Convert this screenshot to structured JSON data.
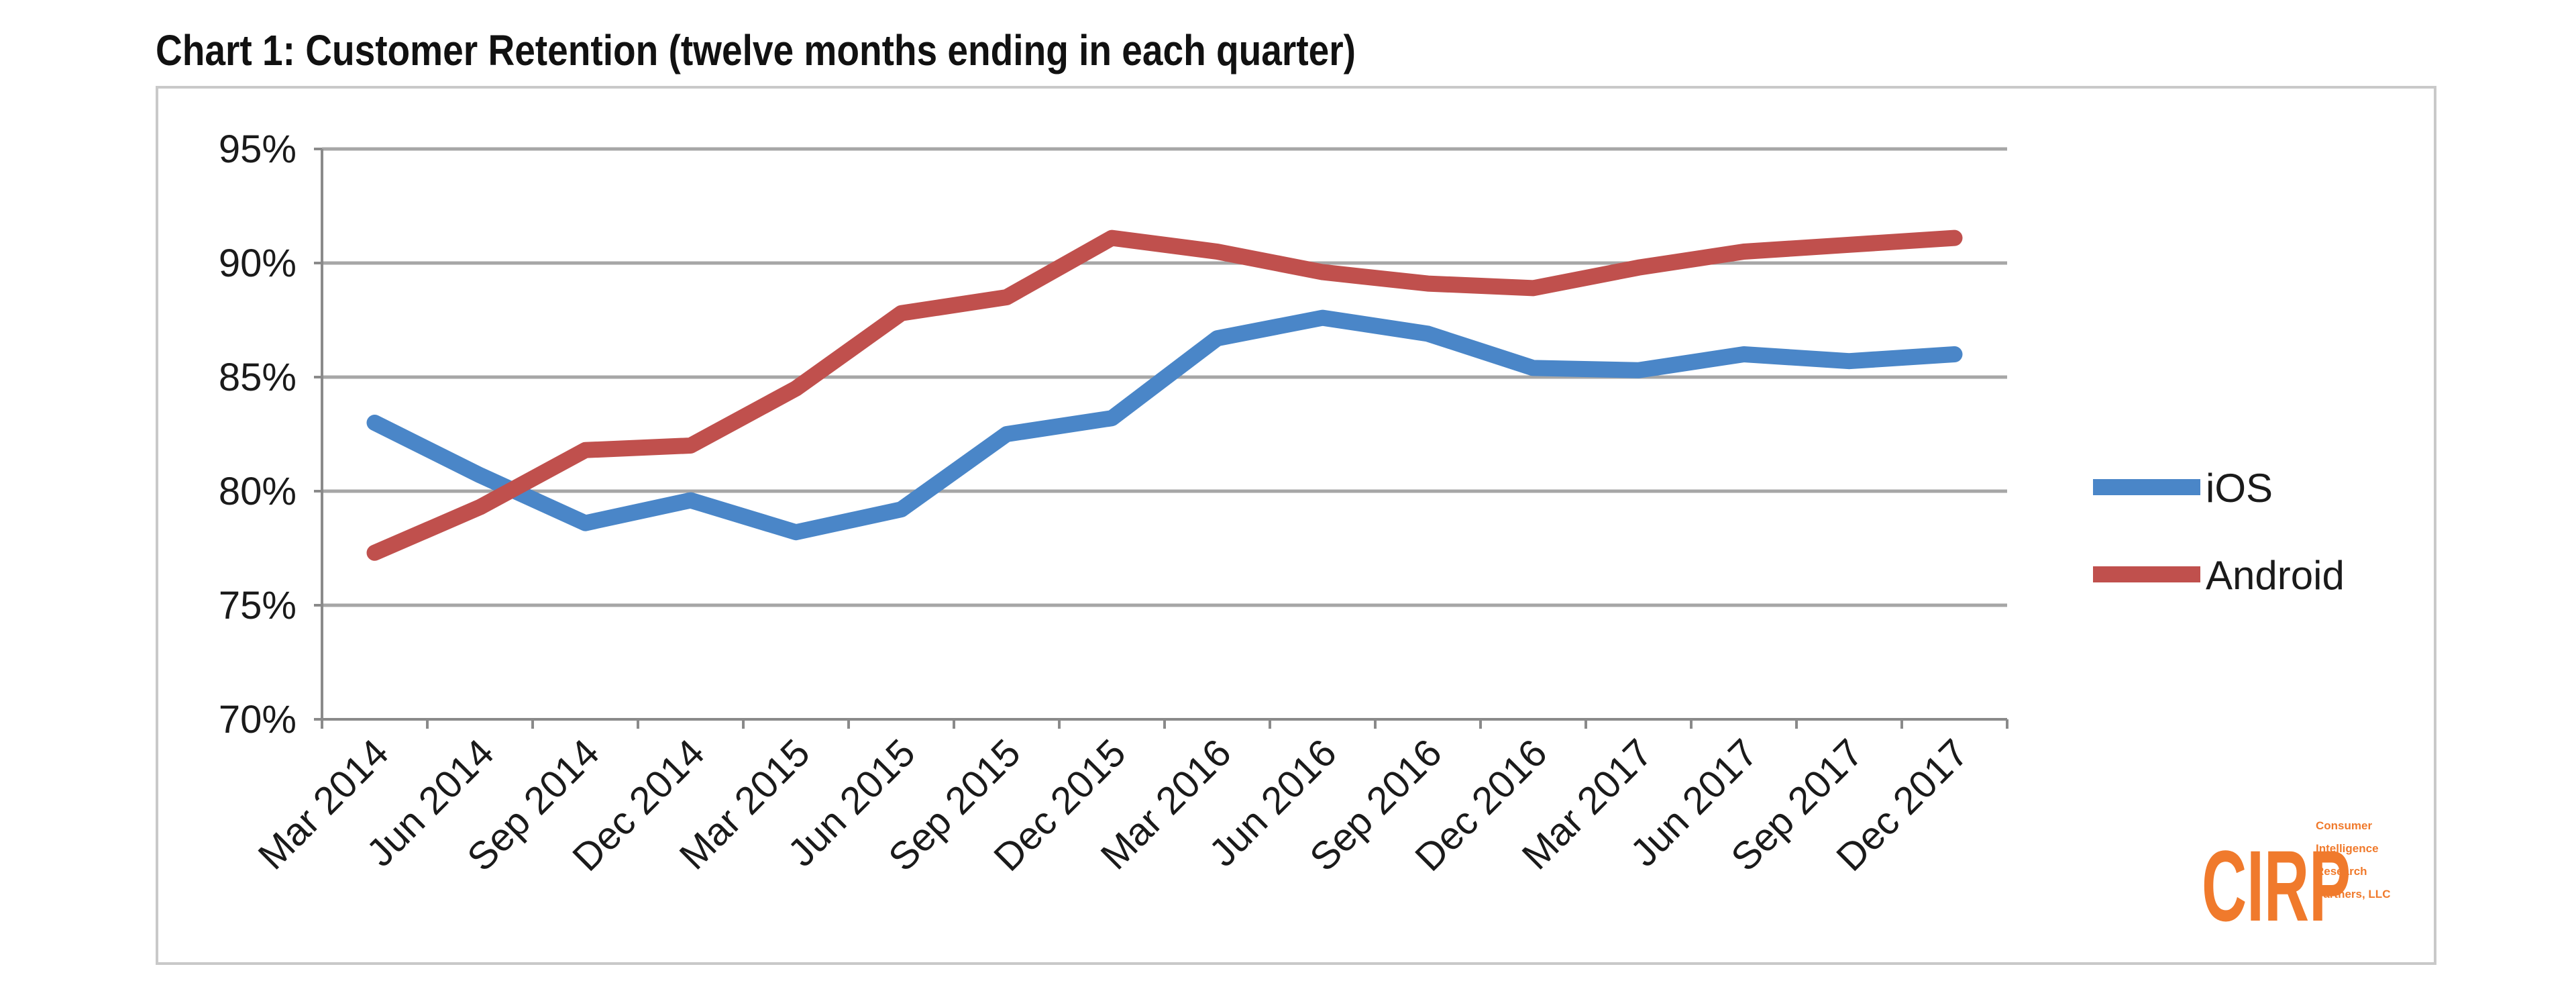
{
  "title": "Chart 1: Customer Retention (twelve months ending in each quarter)",
  "logo": {
    "letters": "CIRP",
    "lines": [
      "Consumer",
      "Intelligence",
      "Research",
      "Partners, LLC"
    ],
    "color": "#f07a2c"
  },
  "chart_data": {
    "type": "line",
    "title": "Chart 1: Customer Retention (twelve months ending in each quarter)",
    "categories": [
      "Mar 2014",
      "Jun 2014",
      "Sep 2014",
      "Dec 2014",
      "Mar 2015",
      "Jun 2015",
      "Sep 2015",
      "Dec 2015",
      "Mar 2016",
      "Jun 2016",
      "Sep 2016",
      "Dec 2016",
      "Mar 2017",
      "Jun 2017",
      "Sep 2017",
      "Dec 2017"
    ],
    "series": [
      {
        "name": "iOS",
        "color": "#4a86c8",
        "values": [
          83,
          80.7,
          78.6,
          79.6,
          78.2,
          79.2,
          82.5,
          83.2,
          86.7,
          87.6,
          86.9,
          85.4,
          85.3,
          86,
          85.7,
          86
        ]
      },
      {
        "name": "Android",
        "color": "#c0504d",
        "values": [
          77.3,
          79.3,
          81.8,
          82,
          84.5,
          87.8,
          88.5,
          91.1,
          90.5,
          89.6,
          89.1,
          88.9,
          89.8,
          90.5,
          90.8,
          91.1
        ]
      }
    ],
    "yticks": [
      "70%",
      "75%",
      "80%",
      "85%",
      "90%",
      "95%"
    ],
    "ylim": [
      70,
      95
    ],
    "y_tick_values": [
      70,
      75,
      80,
      85,
      90,
      95
    ],
    "grid": true,
    "legend": "right",
    "xlabel": "",
    "ylabel": ""
  }
}
